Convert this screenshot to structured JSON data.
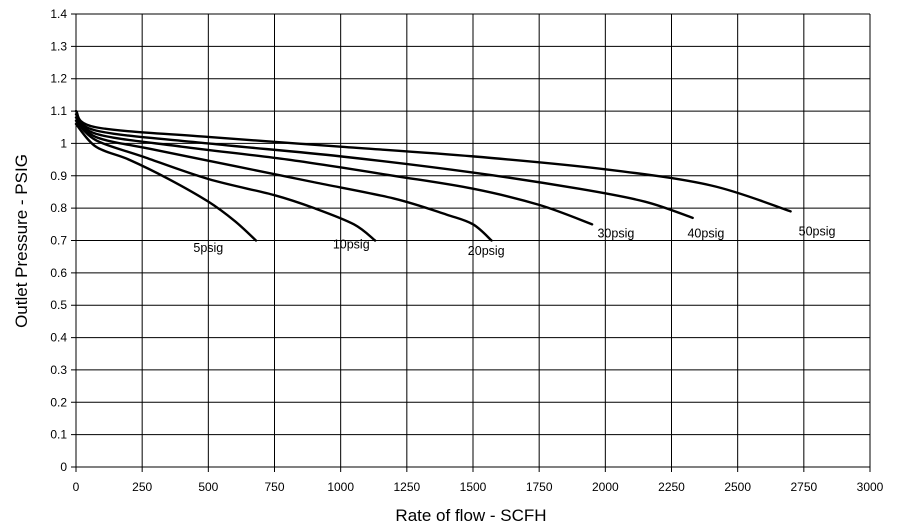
{
  "chart_data": {
    "type": "line",
    "xlabel": "Rate of flow - SCFH",
    "ylabel": "Outlet Pressure - PSIG",
    "xlim": [
      0,
      3000
    ],
    "ylim": [
      0,
      1.4
    ],
    "xticks": [
      "0",
      "250",
      "500",
      "750",
      "1000",
      "1250",
      "1500",
      "1750",
      "2000",
      "2250",
      "2500",
      "2750",
      "3000"
    ],
    "yticks": [
      "0",
      "0.1",
      "0.2",
      "0.3",
      "0.4",
      "0.5",
      "0.6",
      "0.7",
      "0.8",
      "0.9",
      "1",
      "1.1",
      "1.2",
      "1.3",
      "1.4"
    ],
    "grid": true,
    "series": [
      {
        "name": "5psig",
        "points": [
          [
            0,
            1.06
          ],
          [
            75,
            0.99
          ],
          [
            200,
            0.95
          ],
          [
            350,
            0.89
          ],
          [
            500,
            0.82
          ],
          [
            600,
            0.76
          ],
          [
            680,
            0.7
          ]
        ]
      },
      {
        "name": "10psig",
        "points": [
          [
            0,
            1.07
          ],
          [
            75,
            1.01
          ],
          [
            250,
            0.96
          ],
          [
            500,
            0.89
          ],
          [
            750,
            0.84
          ],
          [
            900,
            0.8
          ],
          [
            1050,
            0.75
          ],
          [
            1130,
            0.7
          ]
        ]
      },
      {
        "name": "20psig",
        "points": [
          [
            0,
            1.08
          ],
          [
            75,
            1.02
          ],
          [
            300,
            0.98
          ],
          [
            600,
            0.93
          ],
          [
            900,
            0.88
          ],
          [
            1200,
            0.83
          ],
          [
            1400,
            0.78
          ],
          [
            1500,
            0.75
          ],
          [
            1570,
            0.7
          ]
        ]
      },
      {
        "name": "30psig",
        "points": [
          [
            0,
            1.09
          ],
          [
            75,
            1.03
          ],
          [
            400,
            0.99
          ],
          [
            800,
            0.95
          ],
          [
            1200,
            0.9
          ],
          [
            1500,
            0.86
          ],
          [
            1750,
            0.81
          ],
          [
            1950,
            0.75
          ]
        ]
      },
      {
        "name": "40psig",
        "points": [
          [
            0,
            1.1
          ],
          [
            75,
            1.04
          ],
          [
            500,
            1.0
          ],
          [
            1000,
            0.96
          ],
          [
            1500,
            0.91
          ],
          [
            1900,
            0.86
          ],
          [
            2150,
            0.82
          ],
          [
            2330,
            0.77
          ]
        ]
      },
      {
        "name": "50psig",
        "points": [
          [
            0,
            1.1
          ],
          [
            75,
            1.05
          ],
          [
            500,
            1.02
          ],
          [
            1000,
            0.99
          ],
          [
            1500,
            0.96
          ],
          [
            2000,
            0.92
          ],
          [
            2400,
            0.87
          ],
          [
            2700,
            0.79
          ]
        ]
      }
    ],
    "labels": [
      {
        "text": "5psig",
        "x": 500,
        "y": 0.665
      },
      {
        "text": "10psig",
        "x": 1040,
        "y": 0.675
      },
      {
        "text": "20psig",
        "x": 1550,
        "y": 0.655
      },
      {
        "text": "30psig",
        "x": 2040,
        "y": 0.71
      },
      {
        "text": "40psig",
        "x": 2380,
        "y": 0.71
      },
      {
        "text": "50psig",
        "x": 2800,
        "y": 0.715
      }
    ]
  }
}
